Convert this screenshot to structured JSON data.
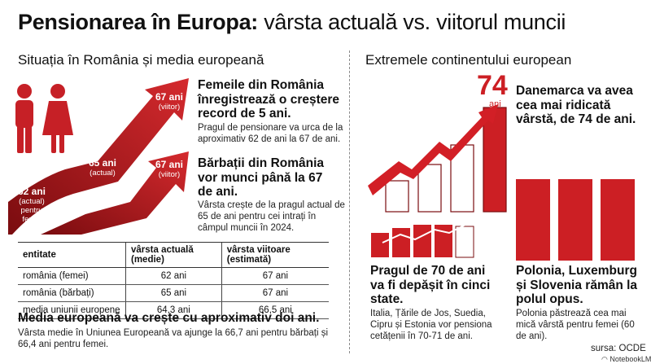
{
  "title": {
    "bold": "Pensionarea în Europa:",
    "light": "vârsta actuală vs. viitorul muncii"
  },
  "left": {
    "heading": "Situația în România și media europeană",
    "arrow_labels": {
      "women_current_age": "62 ani",
      "women_current_sub": "(actual)",
      "women_current_sub2": "pentru femei",
      "men_current_age": "65 ani",
      "men_current_sub": "(actual)",
      "women_future_age": "67 ani",
      "women_future_sub": "(viitor)",
      "men_future_age": "67 ani",
      "men_future_sub": "(viitor)"
    },
    "women_block": {
      "heading": "Femeile din România înregistrează o creștere record de 5 ani.",
      "text": "Pragul de pensionare va urca de la aproximativ 62 de ani la 67 de ani."
    },
    "men_block": {
      "heading": "Bărbații din România vor munci până la 67 de ani.",
      "text": "Vârsta crește de la pragul actual de 65 de ani pentru cei intrați în câmpul muncii în 2024."
    },
    "table": {
      "headers": [
        "entitate",
        "vârsta actuală (medie)",
        "vârsta viitoare (estimată)"
      ],
      "rows": [
        [
          "românia (femei)",
          "62 ani",
          "67 ani"
        ],
        [
          "românia (bărbați)",
          "65 ani",
          "67 ani"
        ],
        [
          "media uniunii europene",
          "64,3 ani",
          "66,5 ani"
        ]
      ]
    },
    "eu_block": {
      "heading": "Media europeană va crește cu aproximativ doi ani.",
      "text": "Vârsta medie în Uniunea Europeană va ajunge la 66,7 ani pentru bărbați și 66,4 ani pentru femei."
    }
  },
  "right": {
    "heading": "Extremele continentului european",
    "big_number": "74",
    "big_number_unit": "ani",
    "denmark": "Danemarca va avea cea mai ridicată vârstă, de 74 de ani.",
    "over70": {
      "heading": "Pragul de 70 de ani va fi depășit în cinci state.",
      "text": "Italia, Țările de Jos, Suedia, Cipru și Estonia vor pensiona cetățenii în 70-71 de ani."
    },
    "lowest": {
      "heading": "Polonia, Luxemburg și Slovenia rămân la polul opus.",
      "text": "Polonia păstrează cea mai mică vârstă pentru femei (60 de ani)."
    }
  },
  "source": "sursa: OCDE",
  "logo_text": "NotebookLM",
  "colors": {
    "red": "#cc1f24",
    "dark_red": "#8e0f12"
  }
}
